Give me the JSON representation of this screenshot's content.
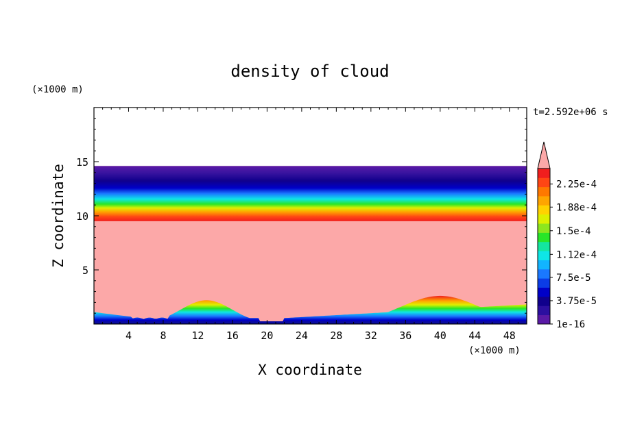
{
  "chart_data": {
    "type": "heatmap",
    "title": "density of cloud",
    "xlabel": "X coordinate",
    "ylabel": "Z coordinate",
    "x_unit": "(×1000 m)",
    "y_unit": "(×1000 m)",
    "time_label": "t=2.592e+06 s",
    "xlim": [
      0,
      50
    ],
    "ylim": [
      0,
      20
    ],
    "x_ticks": [
      4,
      8,
      12,
      16,
      20,
      24,
      28,
      32,
      36,
      40,
      44,
      48
    ],
    "x_tick_labels": [
      "4",
      "8",
      "12",
      "16",
      "20",
      "24",
      "28",
      "32",
      "36",
      "40",
      "44",
      "48"
    ],
    "y_ticks": [
      5,
      10,
      15
    ],
    "y_tick_labels": [
      "5",
      "10",
      "15"
    ],
    "colorbar": {
      "levels": [
        1e-16,
        3.75e-05,
        7.5e-05,
        0.000112,
        0.00015,
        0.000188,
        0.000225
      ],
      "labels": [
        "1e-16",
        "3.75e-5",
        "7.5e-5",
        "1.12e-4",
        "1.5e-4",
        "1.88e-4",
        "2.25e-4"
      ],
      "colors": [
        "#5a1aa6",
        "#2c0fa0",
        "#10008c",
        "#0000c8",
        "#0b3ce6",
        "#1a78ff",
        "#12b4ff",
        "#0ee6e6",
        "#14e6a0",
        "#28e628",
        "#8ce61e",
        "#dcf000",
        "#ffd200",
        "#ffa500",
        "#ff7800",
        "#ff4614",
        "#f01e1e"
      ],
      "extend_color": "#fca8a8"
    },
    "field_summary": {
      "top_layer_z": [
        9.5,
        14.6
      ],
      "cloud_top_z": 14.6,
      "saturated_core_color": "#fca8a8",
      "surface_bumps": [
        {
          "x_center": 13,
          "z_top": 2.2
        },
        {
          "x_center": 40,
          "z_top": 2.6
        }
      ]
    }
  }
}
